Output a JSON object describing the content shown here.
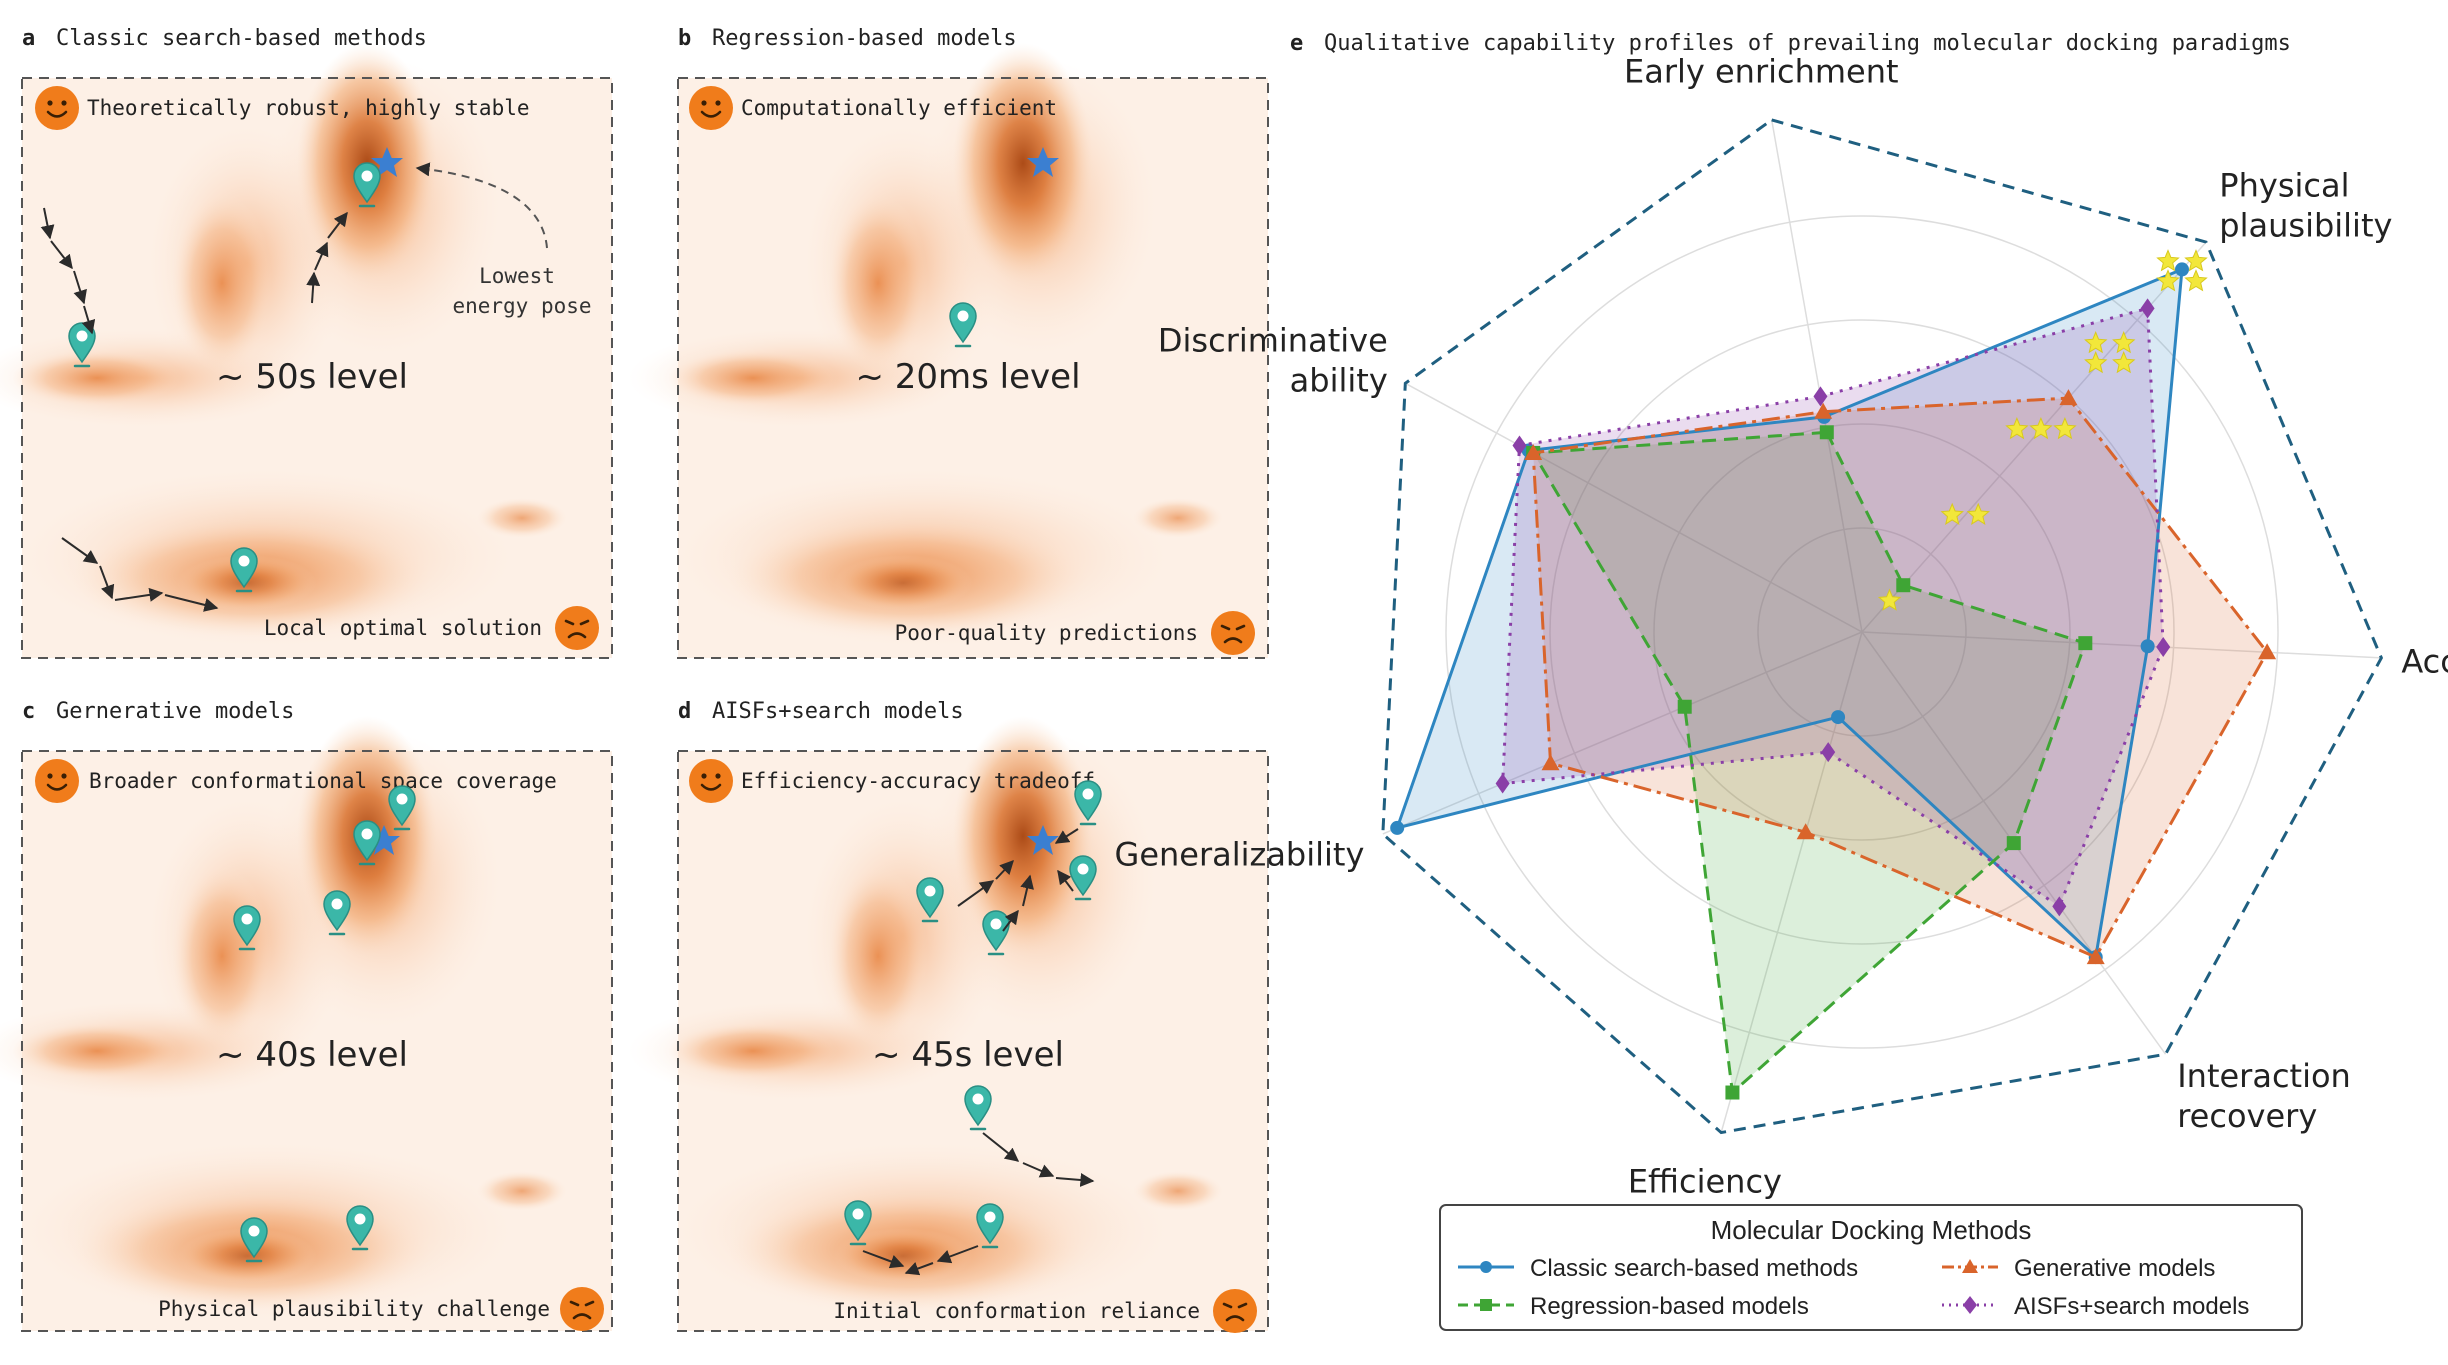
{
  "panels": [
    {
      "letter": "a",
      "title": "Classic search-based methods",
      "pro": "Theoretically robust, highly stable",
      "con": "Local optimal solution",
      "level": "~ 50s level",
      "annotation": [
        "Lowest",
        "energy pose"
      ]
    },
    {
      "letter": "b",
      "title": "Regression-based models",
      "pro": "Computationally efficient",
      "con": "Poor-quality predictions",
      "level": "~ 20ms level"
    },
    {
      "letter": "c",
      "title": "Gernerative models",
      "pro": "Broader conformational space coverage",
      "con": "Physical plausibility challenge",
      "level": "~ 40s level"
    },
    {
      "letter": "d",
      "title": "AISFs+search models",
      "pro": "Efficiency-accuracy tradeoff",
      "con": "Initial conformation reliance",
      "level": "~ 45s level"
    }
  ],
  "radar": {
    "letter": "e",
    "title": "Qualitative capability profiles of prevailing molecular docking paradigms",
    "axes": [
      {
        "id": "early",
        "lines": [
          "Early enrichment"
        ]
      },
      {
        "id": "phys",
        "lines": [
          "Physical",
          "plausibility"
        ]
      },
      {
        "id": "acc",
        "lines": [
          "Accuracy"
        ]
      },
      {
        "id": "inter",
        "lines": [
          "Interaction",
          "recovery"
        ]
      },
      {
        "id": "eff",
        "lines": [
          "Efficiency"
        ]
      },
      {
        "id": "gen",
        "lines": [
          "Generalizability"
        ]
      },
      {
        "id": "disc",
        "lines": [
          "Discriminative",
          "ability"
        ]
      }
    ],
    "series": [
      {
        "name": "Classic search-based methods",
        "color": "#2e86c1",
        "marker": "circle",
        "values": [
          0.42,
          0.93,
          0.55,
          0.77,
          0.17,
          0.97,
          0.73
        ]
      },
      {
        "name": "Regression-based models",
        "color": "#3fa535",
        "marker": "square",
        "values": [
          0.39,
          0.12,
          0.43,
          0.5,
          0.92,
          0.37,
          0.72
        ]
      },
      {
        "name": "Generative models",
        "color": "#d9642b",
        "marker": "triangle",
        "values": [
          0.43,
          0.6,
          0.78,
          0.77,
          0.4,
          0.65,
          0.72
        ]
      },
      {
        "name": "AISFs+search models",
        "color": "#8a3fa7",
        "marker": "diamond",
        "values": [
          0.46,
          0.83,
          0.58,
          0.65,
          0.24,
          0.75,
          0.75
        ]
      }
    ],
    "stars": [
      {
        "axis": "phys",
        "count": 4,
        "level": 0.93
      },
      {
        "axis": "phys",
        "count": 4,
        "level": 0.72
      },
      {
        "axis": "phys",
        "count": 3,
        "level": 0.52
      },
      {
        "axis": "phys",
        "count": 2,
        "level": 0.3
      },
      {
        "axis": "phys",
        "count": 1,
        "level": 0.08
      }
    ],
    "legend": {
      "title": "Molecular Docking Methods",
      "items": [
        "Classic search-based methods",
        "Generative models",
        "Regression-based models",
        "AISFs+search models"
      ]
    }
  }
}
